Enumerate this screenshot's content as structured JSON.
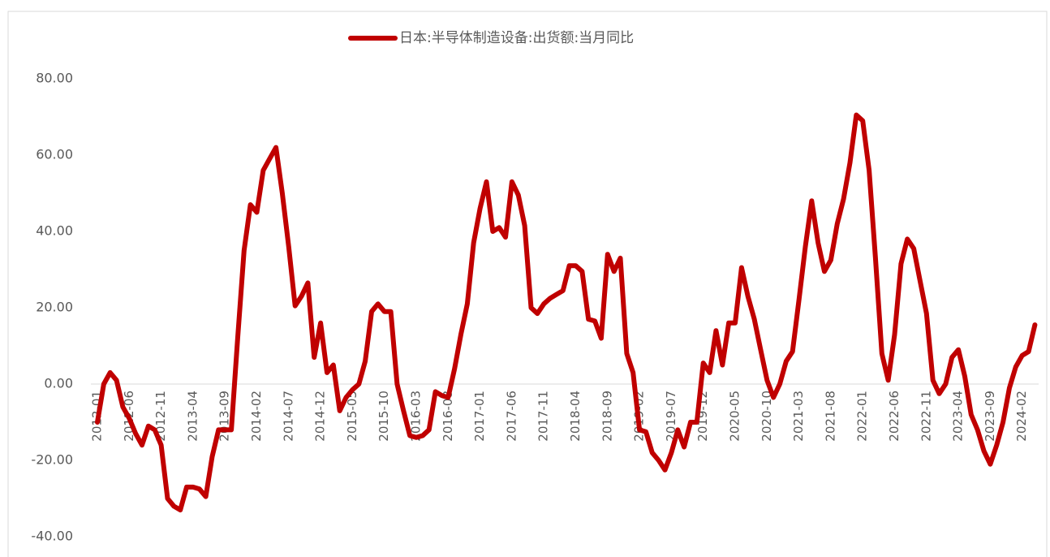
{
  "chart_data": {
    "type": "line",
    "categories": [
      "2012-01",
      null,
      null,
      null,
      null,
      "2012-06",
      null,
      null,
      null,
      null,
      "2012-11",
      null,
      null,
      null,
      null,
      "2013-04",
      null,
      null,
      null,
      null,
      "2013-09",
      null,
      null,
      null,
      null,
      "2014-02",
      null,
      null,
      null,
      null,
      "2014-07",
      null,
      null,
      null,
      null,
      "2014-12",
      null,
      null,
      null,
      null,
      "2015-05",
      null,
      null,
      null,
      null,
      "2015-10",
      null,
      null,
      null,
      null,
      "2016-03",
      null,
      null,
      null,
      null,
      "2016-08",
      null,
      null,
      null,
      null,
      "2017-01",
      null,
      null,
      null,
      null,
      "2017-06",
      null,
      null,
      null,
      null,
      "2017-11",
      null,
      null,
      null,
      null,
      "2018-04",
      null,
      null,
      null,
      null,
      "2018-09",
      null,
      null,
      null,
      null,
      "2019-02",
      null,
      null,
      null,
      null,
      "2019-07",
      null,
      null,
      null,
      null,
      "2019-12",
      null,
      null,
      null,
      null,
      "2020-05",
      null,
      null,
      null,
      null,
      "2020-10",
      null,
      null,
      null,
      null,
      "2021-03",
      null,
      null,
      null,
      null,
      "2021-08",
      null,
      null,
      null,
      null,
      "2022-01",
      null,
      null,
      null,
      null,
      "2022-06",
      null,
      null,
      null,
      null,
      "2022-11",
      null,
      null,
      null,
      null,
      "2023-04",
      null,
      null,
      null,
      null,
      "2023-09",
      null,
      null,
      null,
      null,
      "2024-02",
      null,
      null
    ],
    "series": [
      {
        "name": "日本:半导体制造设备:出货额:当月同比",
        "color": "#c00000",
        "values": [
          -10,
          0,
          3,
          1,
          -6,
          -9,
          -13,
          -16,
          -11,
          -12,
          -16,
          -30,
          -32,
          -33,
          -27,
          -27,
          -27.5,
          -29.5,
          -19,
          -12,
          -12,
          -12,
          12,
          35,
          47,
          45,
          56,
          59,
          62,
          50,
          36,
          20.5,
          23,
          26.5,
          7,
          16,
          3,
          5,
          -7,
          -3.5,
          -1.5,
          0,
          6,
          19,
          21,
          19,
          19,
          0,
          -7,
          -13.5,
          -14,
          -13.5,
          -12,
          -2,
          -3,
          -3.5,
          4,
          13,
          21,
          37,
          46,
          53,
          40,
          41,
          38.5,
          53,
          49.5,
          41.5,
          20,
          18.5,
          21,
          22.5,
          23.5,
          24.5,
          31,
          31,
          29.5,
          17,
          16.5,
          12,
          34,
          29.5,
          33,
          8,
          3,
          -12,
          -12.5,
          -18,
          -20,
          -22.5,
          -18,
          -12,
          -16.5,
          -10,
          -10,
          5.5,
          3,
          14,
          5,
          16,
          16,
          30.5,
          23,
          17,
          9,
          1,
          -3.5,
          0,
          6,
          8.5,
          22,
          36,
          48,
          37,
          29.5,
          32.5,
          42,
          48.5,
          58,
          70.5,
          69,
          56,
          33,
          8,
          1,
          13,
          31.5,
          38,
          35.5,
          27,
          18.5,
          1,
          -2.5,
          0,
          7,
          9,
          2,
          -8,
          -12,
          -17.5,
          -21,
          -16,
          -10,
          -1,
          4.5,
          7.5,
          8.5,
          15.5
        ]
      }
    ],
    "ylim": [
      -40,
      80
    ],
    "yticks": [
      {
        "value": -40,
        "label": "-40.00"
      },
      {
        "value": -20,
        "label": "-20.00"
      },
      {
        "value": 0,
        "label": "0.00"
      },
      {
        "value": 20,
        "label": "20.00"
      },
      {
        "value": 40,
        "label": "40.00"
      },
      {
        "value": 60,
        "label": "60.00"
      },
      {
        "value": 80,
        "label": "80.00"
      }
    ],
    "grid": false,
    "legend": "top"
  }
}
